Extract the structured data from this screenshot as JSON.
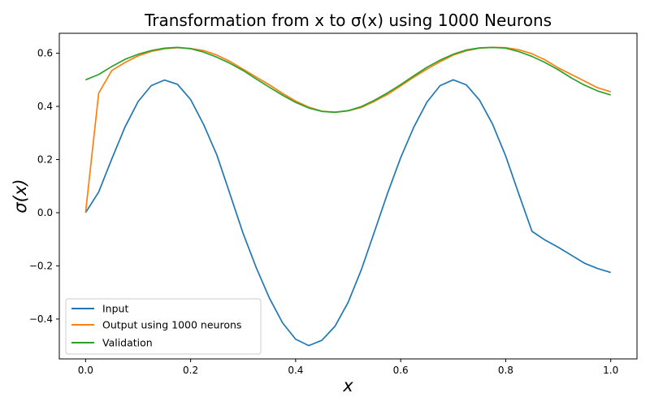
{
  "chart_data": {
    "type": "line",
    "title": "Transformation from x to σ(x) using 1000 Neurons",
    "xlabel": "x",
    "ylabel": "σ(x)",
    "xlim": [
      -0.05,
      1.05
    ],
    "ylim": [
      -0.55,
      0.675
    ],
    "x_ticks": [
      0.0,
      0.2,
      0.4,
      0.6,
      0.8,
      1.0
    ],
    "x_tick_labels": [
      "0.0",
      "0.2",
      "0.4",
      "0.6",
      "0.8",
      "1.0"
    ],
    "y_ticks": [
      -0.4,
      -0.2,
      0.0,
      0.2,
      0.4,
      0.6
    ],
    "y_tick_labels": [
      "−0.4",
      "−0.2",
      "0.0",
      "0.2",
      "0.4",
      "0.6"
    ],
    "grid": false,
    "legend_position": "lower-left",
    "x": [
      0.0,
      0.025,
      0.05,
      0.075,
      0.1,
      0.125,
      0.15,
      0.175,
      0.2,
      0.225,
      0.25,
      0.275,
      0.3,
      0.325,
      0.35,
      0.375,
      0.4,
      0.425,
      0.45,
      0.475,
      0.5,
      0.525,
      0.55,
      0.575,
      0.6,
      0.625,
      0.65,
      0.675,
      0.7,
      0.725,
      0.75,
      0.775,
      0.8,
      0.825,
      0.85,
      0.875,
      0.9,
      0.925,
      0.95,
      0.975,
      1.0
    ],
    "series": [
      {
        "name": "Input",
        "color": "#1f77b4",
        "values": [
          0.0,
          0.078,
          0.203,
          0.322,
          0.418,
          0.478,
          0.499,
          0.483,
          0.426,
          0.331,
          0.217,
          0.07,
          -0.078,
          -0.207,
          -0.321,
          -0.414,
          -0.476,
          -0.5,
          -0.48,
          -0.427,
          -0.337,
          -0.215,
          -0.072,
          0.073,
          0.207,
          0.322,
          0.416,
          0.478,
          0.5,
          0.481,
          0.424,
          0.333,
          0.213,
          0.07,
          -0.07,
          -0.103,
          -0.13,
          -0.16,
          -0.19,
          -0.21,
          -0.225
        ]
      },
      {
        "name": "Output using 1000 neurons",
        "color": "#ff7f0e",
        "values": [
          0.0,
          0.45,
          0.535,
          0.565,
          0.59,
          0.607,
          0.617,
          0.621,
          0.618,
          0.61,
          0.593,
          0.569,
          0.54,
          0.51,
          0.481,
          0.449,
          0.42,
          0.397,
          0.382,
          0.378,
          0.383,
          0.396,
          0.419,
          0.445,
          0.477,
          0.51,
          0.54,
          0.568,
          0.593,
          0.609,
          0.619,
          0.622,
          0.621,
          0.613,
          0.598,
          0.575,
          0.545,
          0.52,
          0.495,
          0.47,
          0.455
        ]
      },
      {
        "name": "Validation",
        "color": "#2ca02c",
        "values": [
          0.5,
          0.52,
          0.55,
          0.577,
          0.596,
          0.61,
          0.619,
          0.622,
          0.617,
          0.604,
          0.585,
          0.562,
          0.535,
          0.503,
          0.472,
          0.442,
          0.415,
          0.394,
          0.381,
          0.378,
          0.384,
          0.399,
          0.423,
          0.451,
          0.482,
          0.515,
          0.547,
          0.574,
          0.596,
          0.612,
          0.62,
          0.622,
          0.619,
          0.606,
          0.588,
          0.565,
          0.538,
          0.507,
          0.48,
          0.458,
          0.443
        ]
      }
    ]
  }
}
